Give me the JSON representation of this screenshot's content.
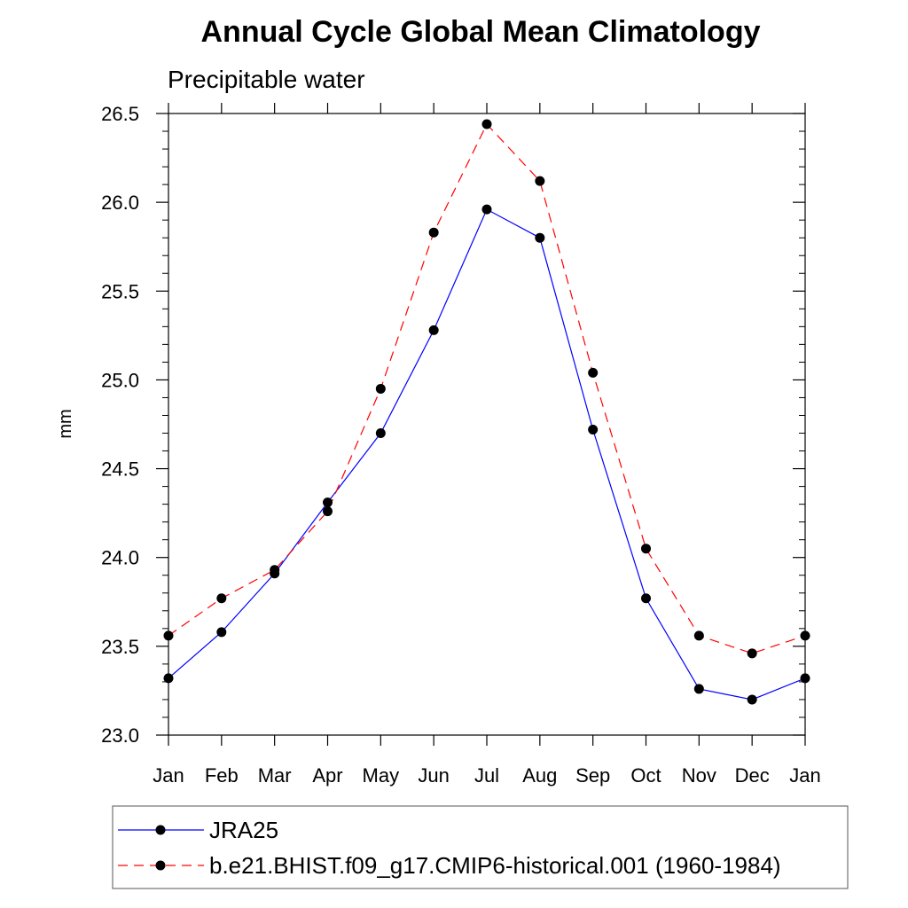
{
  "chart_data": {
    "type": "line",
    "title": "Annual Cycle Global Mean Climatology",
    "subtitle": "Precipitable water",
    "xlabel": "",
    "ylabel": "mm",
    "categories": [
      "Jan",
      "Feb",
      "Mar",
      "Apr",
      "May",
      "Jun",
      "Jul",
      "Aug",
      "Sep",
      "Oct",
      "Nov",
      "Dec",
      "Jan"
    ],
    "ylim": [
      23.0,
      26.5
    ],
    "yticks": [
      "23.0",
      "23.5",
      "24.0",
      "24.5",
      "25.0",
      "25.5",
      "26.0",
      "26.5"
    ],
    "grid": false,
    "legend_position": "bottom",
    "series": [
      {
        "name": "JRA25",
        "color": "#0000ff",
        "line_style": "solid",
        "marker": "filled-circle",
        "values": [
          23.32,
          23.58,
          23.91,
          24.31,
          24.7,
          25.28,
          25.96,
          25.8,
          24.72,
          23.77,
          23.26,
          23.2,
          23.32
        ]
      },
      {
        "name": "b.e21.BHIST.f09_g17.CMIP6-historical.001 (1960-1984)",
        "color": "#ff0000",
        "line_style": "dashed",
        "marker": "filled-circle",
        "values": [
          23.56,
          23.77,
          23.93,
          24.26,
          24.95,
          25.83,
          26.44,
          26.12,
          25.04,
          24.05,
          23.56,
          23.46,
          23.56
        ]
      }
    ]
  }
}
